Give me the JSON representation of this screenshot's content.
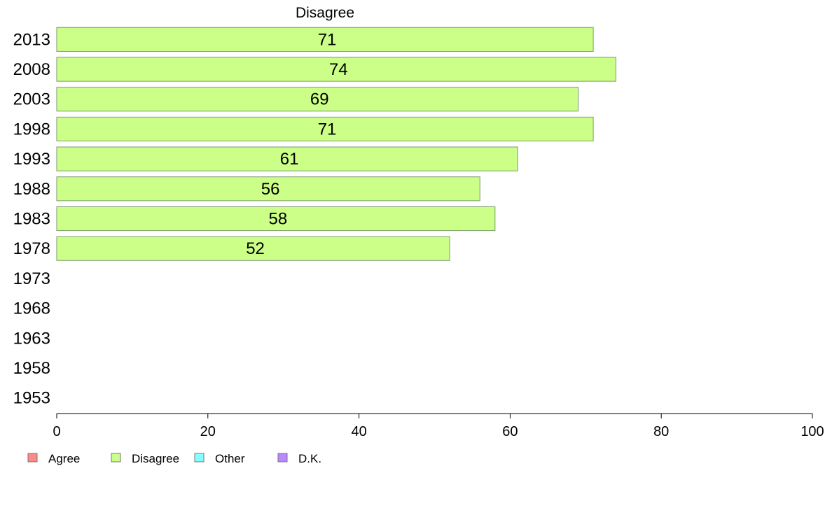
{
  "chart_data": {
    "type": "bar",
    "orientation": "horizontal",
    "title": "Disagree",
    "categories": [
      "2013",
      "2008",
      "2003",
      "1998",
      "1993",
      "1988",
      "1983",
      "1978",
      "1973",
      "1968",
      "1963",
      "1958",
      "1953"
    ],
    "series": [
      {
        "name": "Disagree",
        "color": "#ccff88",
        "values": [
          71,
          74,
          69,
          71,
          61,
          56,
          58,
          52,
          null,
          null,
          null,
          null,
          null
        ]
      }
    ],
    "xlim": [
      0,
      100
    ],
    "xticks": [
      0,
      20,
      40,
      60,
      80,
      100
    ],
    "grid": false,
    "legend": {
      "placement": "bottom-left",
      "items": [
        {
          "label": "Agree",
          "color": "#ff8888"
        },
        {
          "label": "Disagree",
          "color": "#ccff88"
        },
        {
          "label": "Other",
          "color": "#88ffff"
        },
        {
          "label": "D.K.",
          "color": "#bb88ff"
        }
      ]
    }
  }
}
